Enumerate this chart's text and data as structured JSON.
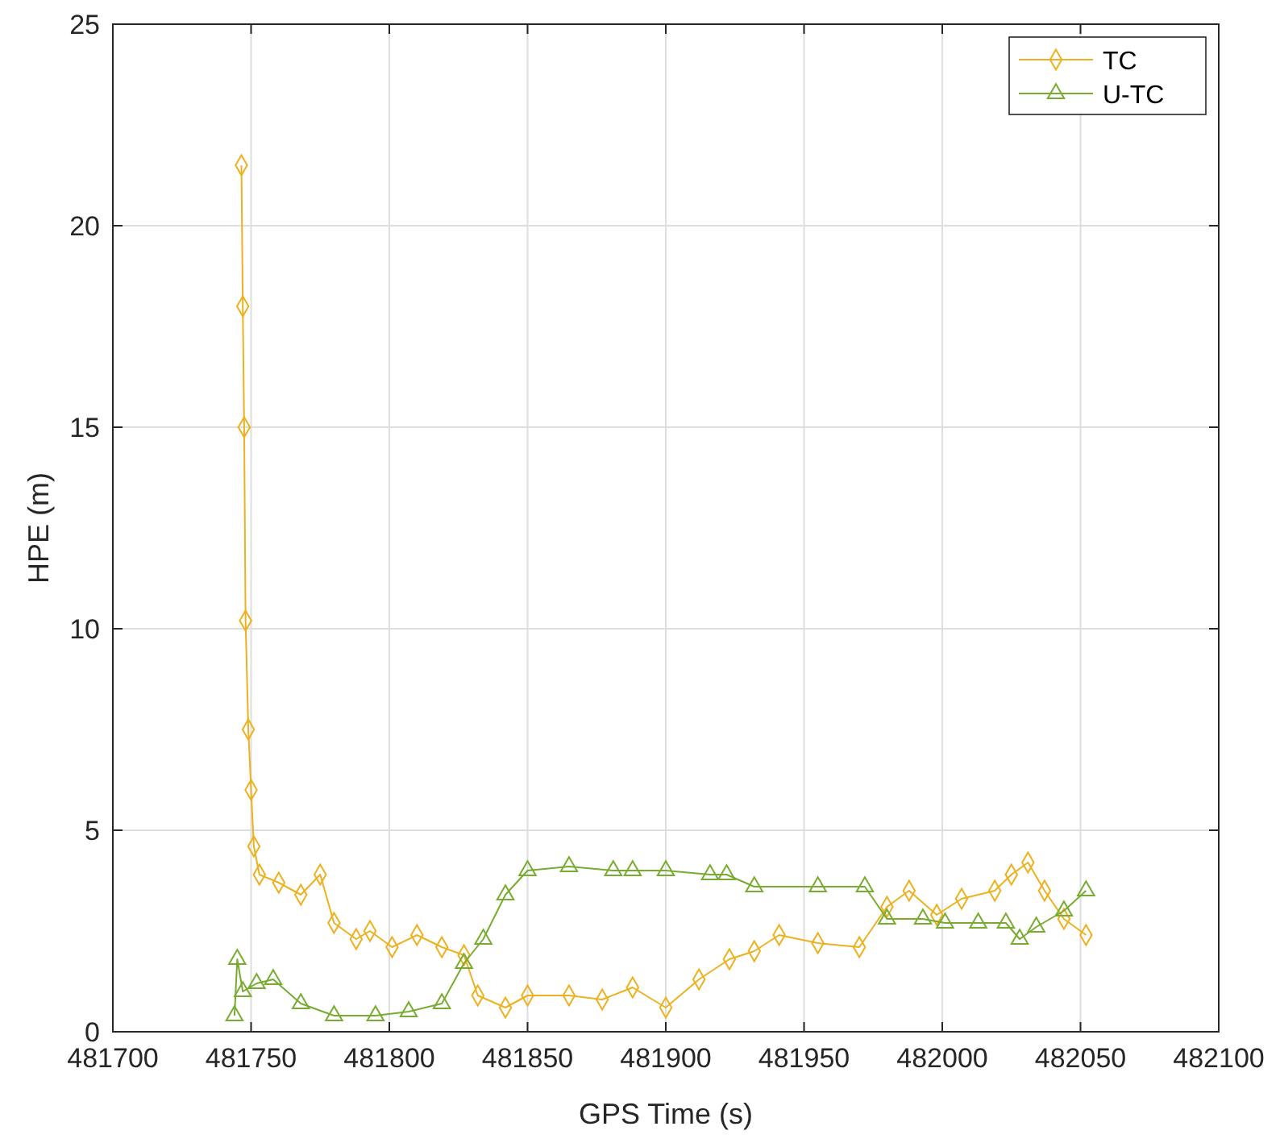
{
  "chart_data": {
    "type": "line",
    "xlabel": "GPS Time (s)",
    "ylabel": "HPE (m)",
    "xlim": [
      481700,
      482100
    ],
    "xticks": [
      481700,
      481750,
      481800,
      481850,
      481900,
      481950,
      482000,
      482050,
      482100
    ],
    "ylim": [
      0,
      25
    ],
    "yticks": [
      0,
      5,
      10,
      15,
      20,
      25
    ],
    "grid": true,
    "legend": "top right",
    "line_style": "solid",
    "series": [
      {
        "name": "TC",
        "color": "#edb120",
        "marker": "diamond",
        "x": [
          481746.5,
          481747,
          481747.5,
          481748,
          481749,
          481750,
          481751,
          481753,
          481760,
          481768,
          481775,
          481780,
          481788,
          481793,
          481801,
          481810,
          481819,
          481827,
          481832,
          481842,
          481850,
          481865,
          481877,
          481888,
          481900,
          481912,
          481923,
          481932,
          481941,
          481955,
          481970,
          481980,
          481988,
          481998,
          482007,
          482019,
          482025,
          482031,
          482037,
          482044,
          482052
        ],
        "values": [
          21.5,
          18,
          15,
          10.2,
          7.5,
          6,
          4.6,
          3.9,
          3.7,
          3.4,
          3.9,
          2.7,
          2.3,
          2.5,
          2.1,
          2.4,
          2.1,
          1.9,
          0.9,
          0.6,
          0.9,
          0.9,
          0.8,
          1.1,
          0.6,
          1.3,
          1.8,
          2,
          2.4,
          2.2,
          2.1,
          3.1,
          3.5,
          2.9,
          3.3,
          3.5,
          3.9,
          4.2,
          3.5,
          2.8,
          2.4
        ]
      },
      {
        "name": "U-TC",
        "color": "#77ac30",
        "marker": "triangle",
        "x": [
          481744,
          481745,
          481747,
          481752,
          481758,
          481768,
          481780,
          481795,
          481807,
          481819,
          481827,
          481834,
          481842,
          481850,
          481865,
          481881,
          481888,
          481900,
          481916,
          481922,
          481932,
          481955,
          481972,
          481980,
          481993,
          482001,
          482013,
          482023,
          482028,
          482034,
          482044,
          482052
        ],
        "values": [
          0.4,
          1.8,
          1,
          1.2,
          1.3,
          0.7,
          0.4,
          0.4,
          0.5,
          0.7,
          1.7,
          2.3,
          3.4,
          4,
          4.1,
          4,
          4,
          4,
          3.9,
          3.9,
          3.6,
          3.6,
          3.6,
          2.8,
          2.8,
          2.7,
          2.7,
          2.7,
          2.3,
          2.6,
          3,
          3.5
        ]
      }
    ]
  }
}
